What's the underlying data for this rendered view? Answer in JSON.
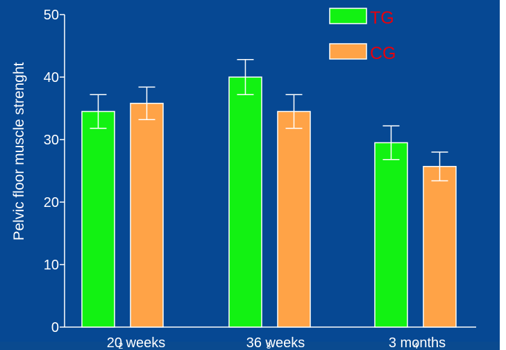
{
  "chart_data": {
    "type": "bar",
    "title": "",
    "ylabel": "Pelvic floor muscle strenght",
    "xlabel": "",
    "categories": [
      "20 weeks",
      "36 weeks",
      "3 months"
    ],
    "category_markers": [
      "2",
      "3",
      "4"
    ],
    "ylim": [
      0,
      50
    ],
    "yticks": [
      "0",
      "10",
      "20",
      "30",
      "40",
      "50"
    ],
    "grid": false,
    "legend_position": "top-right",
    "series": [
      {
        "name": "TG",
        "values": [
          34.5,
          40,
          29.5
        ],
        "error": [
          2.7,
          2.8,
          2.7
        ]
      },
      {
        "name": "CG",
        "values": [
          35.8,
          34.5,
          25.7
        ],
        "error": [
          2.6,
          2.7,
          2.3
        ]
      }
    ]
  },
  "colors": {
    "background": "#064893",
    "tg": "#12f212",
    "cg": "#ffa347",
    "legend_text": "#e8000b",
    "axis": "#ffffff"
  }
}
